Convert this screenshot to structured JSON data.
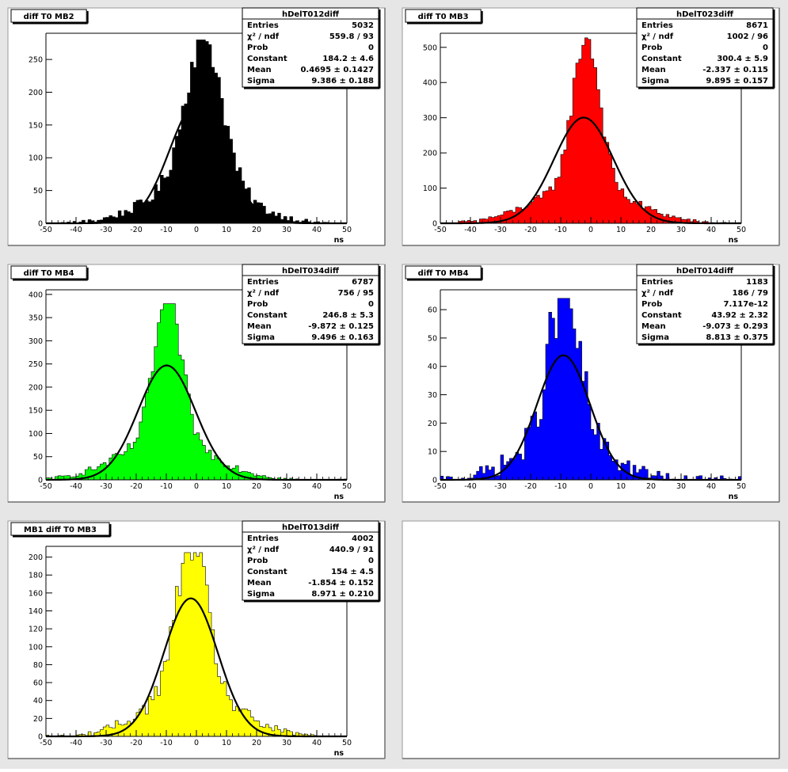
{
  "chart_data": [
    {
      "type": "bar",
      "pad_title": "diff T0 MB2",
      "xlabel": "ns",
      "xlim": [
        -50,
        50
      ],
      "ylim": [
        0,
        290
      ],
      "xticks": [
        "-50",
        "-40",
        "-30",
        "-20",
        "-10",
        "0",
        "10",
        "20",
        "30",
        "40",
        "50"
      ],
      "yticks": [
        0,
        50,
        100,
        150,
        200,
        250
      ],
      "fill_color": "#000000",
      "hist_mean": 2.5,
      "hist_core_sigma": 6.0,
      "hist_peak": 280,
      "fit": {
        "constant": 184.2,
        "mean": 0.4695,
        "sigma": 9.386
      },
      "stats": {
        "name": "hDelT012diff",
        "rows": [
          {
            "label": "Entries",
            "value": "5032"
          },
          {
            "label": "χ² / ndf",
            "value": "559.8 / 93"
          },
          {
            "label": "Prob",
            "value": "0"
          },
          {
            "label": "Constant",
            "value": "184.2 ± 4.6"
          },
          {
            "label": "Mean",
            "value": "0.4695 ± 0.1427"
          },
          {
            "label": "Sigma",
            "value": "9.386 ± 0.188"
          }
        ]
      }
    },
    {
      "type": "bar",
      "pad_title": "diff T0 MB3",
      "xlabel": "ns",
      "xlim": [
        -50,
        50
      ],
      "ylim": [
        0,
        540
      ],
      "xticks": [
        "-50",
        "-40",
        "-30",
        "-20",
        "-10",
        "0",
        "10",
        "20",
        "30",
        "40",
        "50"
      ],
      "yticks": [
        0,
        100,
        200,
        300,
        400,
        500
      ],
      "fill_color": "#ff0000",
      "hist_mean": -1.5,
      "hist_core_sigma": 4.5,
      "hist_peak": 530,
      "fit": {
        "constant": 300.4,
        "mean": -2.337,
        "sigma": 9.895
      },
      "stats": {
        "name": "hDelT023diff",
        "rows": [
          {
            "label": "Entries",
            "value": "8671"
          },
          {
            "label": "χ² / ndf",
            "value": "1002 / 96"
          },
          {
            "label": "Prob",
            "value": "0"
          },
          {
            "label": "Constant",
            "value": "300.4 ± 5.9"
          },
          {
            "label": "Mean",
            "value": "-2.337 ± 0.115"
          },
          {
            "label": "Sigma",
            "value": "9.895 ± 0.157"
          }
        ]
      }
    },
    {
      "type": "bar",
      "pad_title": "diff T0 MB4",
      "xlabel": "ns",
      "xlim": [
        -50,
        50
      ],
      "ylim": [
        0,
        410
      ],
      "xticks": [
        "-50",
        "-40",
        "-30",
        "-20",
        "-10",
        "0",
        "10",
        "20",
        "30",
        "40",
        "50"
      ],
      "yticks": [
        0,
        50,
        100,
        150,
        200,
        250,
        300,
        350,
        400
      ],
      "fill_color": "#00ff00",
      "hist_mean": -9.5,
      "hist_core_sigma": 4.5,
      "hist_peak": 380,
      "fit": {
        "constant": 246.8,
        "mean": -9.872,
        "sigma": 9.496
      },
      "stats": {
        "name": "hDelT034diff",
        "rows": [
          {
            "label": "Entries",
            "value": "6787"
          },
          {
            "label": "χ² / ndf",
            "value": "756 / 95"
          },
          {
            "label": "Prob",
            "value": "0"
          },
          {
            "label": "Constant",
            "value": "246.8 ± 5.3"
          },
          {
            "label": "Mean",
            "value": "-9.872 ± 0.125"
          },
          {
            "label": "Sigma",
            "value": "9.496 ± 0.163"
          }
        ]
      }
    },
    {
      "type": "bar",
      "pad_title": "diff T0 MB4",
      "xlabel": "ns",
      "xlim": [
        -50,
        50
      ],
      "ylim": [
        0,
        67
      ],
      "xticks": [
        "-50",
        "-40",
        "-30",
        "-20",
        "-10",
        "0",
        "10",
        "20",
        "30",
        "40",
        "50"
      ],
      "yticks": [
        0,
        10,
        20,
        30,
        40,
        50,
        60
      ],
      "fill_color": "#0000ff",
      "hist_mean": -9.0,
      "hist_core_sigma": 5.0,
      "hist_peak": 64,
      "fit": {
        "constant": 43.92,
        "mean": -9.073,
        "sigma": 8.813
      },
      "stats": {
        "name": "hDelT014diff",
        "rows": [
          {
            "label": "Entries",
            "value": "1183"
          },
          {
            "label": "χ² / ndf",
            "value": "186 / 79"
          },
          {
            "label": "Prob",
            "value": "7.117e-12"
          },
          {
            "label": "Constant",
            "value": "43.92 ± 2.32"
          },
          {
            "label": "Mean",
            "value": "-9.073 ± 0.293"
          },
          {
            "label": "Sigma",
            "value": "8.813 ± 0.375"
          }
        ]
      }
    },
    {
      "type": "bar",
      "pad_title": "MB1 diff T0 MB3",
      "xlabel": "ns",
      "xlim": [
        -50,
        50
      ],
      "ylim": [
        0,
        212
      ],
      "xticks": [
        "-50",
        "-40",
        "-30",
        "-20",
        "-10",
        "0",
        "10",
        "20",
        "30",
        "40",
        "50"
      ],
      "yticks": [
        0,
        20,
        40,
        60,
        80,
        100,
        120,
        140,
        160,
        180,
        200
      ],
      "fill_color": "#ffff00",
      "hist_mean": -1.5,
      "hist_core_sigma": 5.0,
      "hist_peak": 205,
      "fit": {
        "constant": 154,
        "mean": -1.854,
        "sigma": 8.971
      },
      "stats": {
        "name": "hDelT013diff",
        "rows": [
          {
            "label": "Entries",
            "value": "4002"
          },
          {
            "label": "χ² / ndf",
            "value": "440.9 / 91"
          },
          {
            "label": "Prob",
            "value": "0"
          },
          {
            "label": "Constant",
            "value": "154 ± 4.5"
          },
          {
            "label": "Mean",
            "value": "-1.854 ± 0.152"
          },
          {
            "label": "Sigma",
            "value": "8.971 ± 0.210"
          }
        ]
      }
    }
  ]
}
